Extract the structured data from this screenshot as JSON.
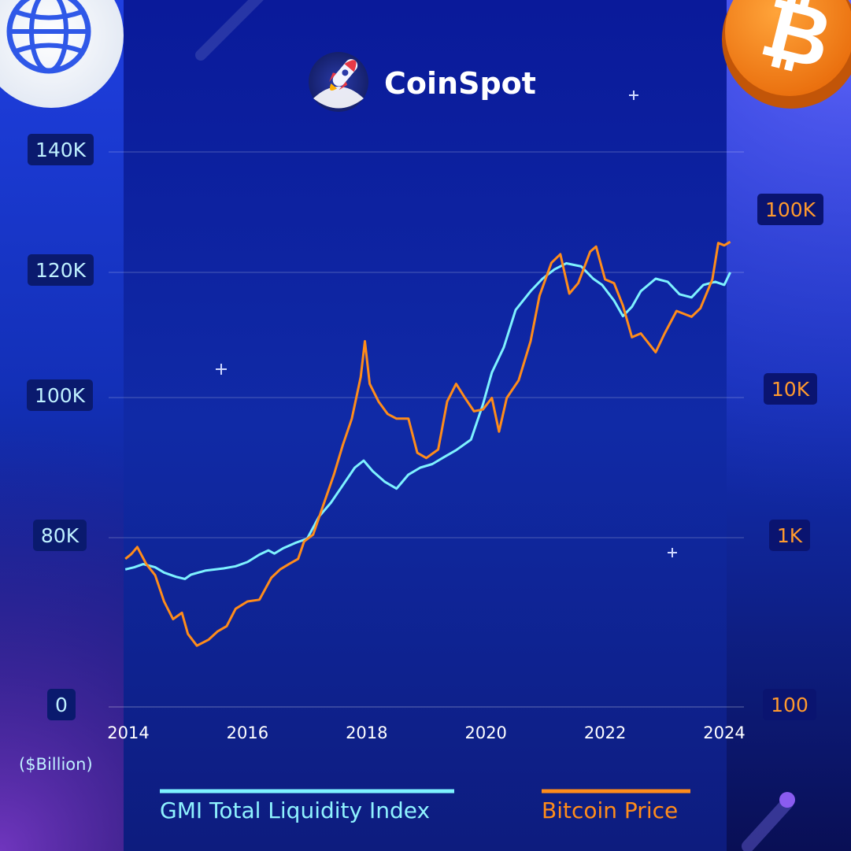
{
  "brand": {
    "name": "CoinSpot"
  },
  "chart_data": {
    "type": "line",
    "x_label_unit": "($Billion)",
    "x_ticks": [
      "2014",
      "2016",
      "2018",
      "2020",
      "2022",
      "2024"
    ],
    "y_left": {
      "ticks": [
        "0",
        "80K",
        "100K",
        "120K",
        "140K"
      ],
      "tick_values": [
        0,
        80000,
        100000,
        120000,
        140000
      ],
      "unit": "$Billion"
    },
    "y_right": {
      "scale": "log",
      "ticks": [
        "100",
        "1K",
        "10K",
        "100K"
      ],
      "tick_values": [
        100,
        1000,
        10000,
        100000
      ]
    },
    "legend_placement": "bottom",
    "grid": true,
    "series": [
      {
        "name": "GMI Total Liquidity Index",
        "color": "#7ef2ff",
        "axis": "left",
        "points": [
          [
            2013.95,
            65000
          ],
          [
            2014.1,
            66000
          ],
          [
            2014.25,
            67500
          ],
          [
            2014.45,
            66000
          ],
          [
            2014.6,
            63500
          ],
          [
            2014.8,
            61500
          ],
          [
            2014.95,
            60500
          ],
          [
            2015.05,
            62500
          ],
          [
            2015.3,
            64500
          ],
          [
            2015.6,
            65500
          ],
          [
            2015.8,
            66500
          ],
          [
            2016.0,
            68500
          ],
          [
            2016.2,
            72000
          ],
          [
            2016.35,
            74000
          ],
          [
            2016.45,
            72500
          ],
          [
            2016.6,
            75000
          ],
          [
            2016.8,
            77500
          ],
          [
            2017.0,
            79500
          ],
          [
            2017.2,
            83000
          ],
          [
            2017.4,
            85000
          ],
          [
            2017.6,
            87500
          ],
          [
            2017.8,
            90000
          ],
          [
            2017.95,
            91000
          ],
          [
            2018.1,
            89500
          ],
          [
            2018.3,
            88000
          ],
          [
            2018.5,
            87000
          ],
          [
            2018.7,
            89000
          ],
          [
            2018.9,
            90000
          ],
          [
            2019.1,
            90500
          ],
          [
            2019.3,
            91500
          ],
          [
            2019.5,
            92500
          ],
          [
            2019.75,
            94000
          ],
          [
            2019.95,
            99000
          ],
          [
            2020.1,
            104000
          ],
          [
            2020.3,
            108000
          ],
          [
            2020.5,
            114000
          ],
          [
            2020.75,
            117000
          ],
          [
            2020.95,
            119000
          ],
          [
            2021.15,
            120500
          ],
          [
            2021.35,
            121500
          ],
          [
            2021.6,
            121000
          ],
          [
            2021.8,
            119000
          ],
          [
            2021.95,
            118000
          ],
          [
            2022.15,
            115500
          ],
          [
            2022.3,
            113000
          ],
          [
            2022.45,
            114500
          ],
          [
            2022.6,
            117000
          ],
          [
            2022.85,
            119000
          ],
          [
            2023.05,
            118500
          ],
          [
            2023.25,
            116500
          ],
          [
            2023.45,
            116000
          ],
          [
            2023.65,
            118000
          ],
          [
            2023.85,
            118500
          ],
          [
            2024.0,
            118000
          ],
          [
            2024.1,
            120000
          ]
        ]
      },
      {
        "name": "Bitcoin Price",
        "color": "#ff8c1a",
        "axis": "right",
        "points": [
          [
            2013.95,
            750
          ],
          [
            2014.05,
            800
          ],
          [
            2014.15,
            880
          ],
          [
            2014.3,
            700
          ],
          [
            2014.45,
            600
          ],
          [
            2014.6,
            420
          ],
          [
            2014.75,
            330
          ],
          [
            2014.9,
            360
          ],
          [
            2015.0,
            270
          ],
          [
            2015.15,
            230
          ],
          [
            2015.35,
            250
          ],
          [
            2015.5,
            280
          ],
          [
            2015.65,
            300
          ],
          [
            2015.8,
            380
          ],
          [
            2016.0,
            420
          ],
          [
            2016.2,
            430
          ],
          [
            2016.4,
            580
          ],
          [
            2016.55,
            650
          ],
          [
            2016.7,
            700
          ],
          [
            2016.85,
            750
          ],
          [
            2016.95,
            950
          ],
          [
            2017.1,
            1050
          ],
          [
            2017.3,
            1800
          ],
          [
            2017.45,
            2700
          ],
          [
            2017.6,
            4300
          ],
          [
            2017.75,
            6500
          ],
          [
            2017.9,
            12000
          ],
          [
            2017.97,
            19000
          ],
          [
            2018.05,
            11000
          ],
          [
            2018.2,
            8500
          ],
          [
            2018.35,
            7000
          ],
          [
            2018.5,
            6500
          ],
          [
            2018.7,
            6500
          ],
          [
            2018.85,
            3800
          ],
          [
            2019.0,
            3500
          ],
          [
            2019.2,
            4000
          ],
          [
            2019.35,
            8500
          ],
          [
            2019.5,
            11000
          ],
          [
            2019.65,
            9000
          ],
          [
            2019.8,
            7300
          ],
          [
            2019.95,
            7500
          ],
          [
            2020.1,
            9000
          ],
          [
            2020.22,
            5300
          ],
          [
            2020.35,
            9000
          ],
          [
            2020.55,
            11500
          ],
          [
            2020.75,
            19000
          ],
          [
            2020.9,
            34000
          ],
          [
            2021.1,
            52000
          ],
          [
            2021.25,
            58000
          ],
          [
            2021.4,
            35000
          ],
          [
            2021.55,
            40000
          ],
          [
            2021.75,
            60000
          ],
          [
            2021.85,
            64000
          ],
          [
            2022.0,
            42000
          ],
          [
            2022.15,
            40000
          ],
          [
            2022.3,
            30000
          ],
          [
            2022.45,
            20000
          ],
          [
            2022.6,
            21000
          ],
          [
            2022.85,
            16500
          ],
          [
            2023.0,
            21000
          ],
          [
            2023.2,
            28000
          ],
          [
            2023.45,
            26000
          ],
          [
            2023.6,
            29000
          ],
          [
            2023.8,
            42000
          ],
          [
            2023.9,
            67000
          ],
          [
            2024.0,
            65000
          ],
          [
            2024.1,
            68000
          ]
        ]
      }
    ]
  }
}
